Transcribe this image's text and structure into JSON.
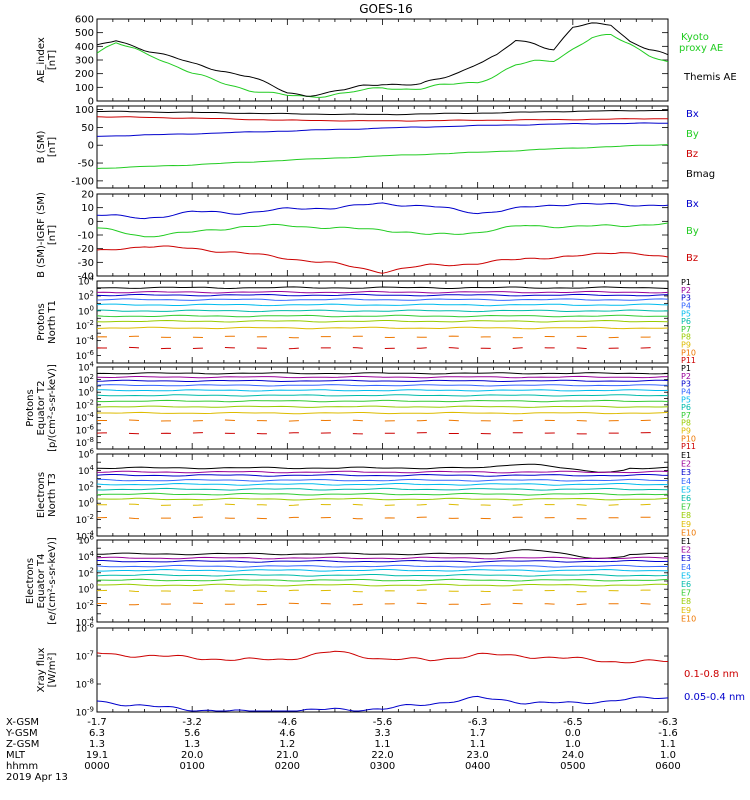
{
  "chart_data": {
    "type": "line",
    "title": "GOES-16",
    "panels": [
      {
        "id": "ae",
        "ylabel": [
          "AE_index",
          "[nT]"
        ],
        "scale": "linear",
        "ylim": [
          0,
          600
        ],
        "yticks": [
          0,
          100,
          200,
          300,
          400,
          500,
          600
        ],
        "series": [
          {
            "name": "Kyoto proxy AE",
            "color": "#22cc22",
            "x": [
              0,
              0.2,
              0.4,
              0.6,
              0.8,
              1.0,
              1.2,
              1.4,
              1.6,
              1.8,
              2.0,
              2.2,
              2.4,
              2.6,
              2.8,
              3.0,
              3.2,
              3.4,
              3.6,
              3.8,
              4.0,
              4.2,
              4.4,
              4.6,
              4.8,
              5.0,
              5.2,
              5.4,
              5.6,
              5.8,
              6.0
            ],
            "y": [
              350,
              420,
              380,
              330,
              260,
              200,
              160,
              120,
              80,
              55,
              40,
              35,
              40,
              55,
              75,
              100,
              90,
              90,
              110,
              130,
              140,
              190,
              260,
              290,
              300,
              380,
              460,
              480,
              420,
              340,
              280
            ]
          },
          {
            "name": "Themis AE",
            "color": "#000000",
            "x": [
              0,
              0.2,
              0.4,
              0.6,
              0.8,
              1.0,
              1.2,
              1.4,
              1.6,
              1.8,
              2.0,
              2.2,
              2.4,
              2.6,
              2.8,
              3.0,
              3.2,
              3.4,
              3.6,
              3.8,
              4.0,
              4.2,
              4.4,
              4.6,
              4.8,
              5.0,
              5.2,
              5.4,
              5.6,
              5.8,
              6.0
            ],
            "y": [
              400,
              440,
              400,
              360,
              320,
              270,
              240,
              210,
              180,
              120,
              60,
              45,
              55,
              80,
              110,
              130,
              120,
              120,
              160,
              210,
              280,
              330,
              440,
              420,
              380,
              540,
              560,
              560,
              440,
              380,
              330
            ]
          }
        ]
      },
      {
        "id": "bsm",
        "ylabel": [
          "B (SM)",
          "[nT]"
        ],
        "scale": "linear",
        "ylim": [
          -120,
          110
        ],
        "yticks": [
          -100,
          -50,
          0,
          50,
          100
        ],
        "series": [
          {
            "name": "Bx",
            "color": "#0000cc",
            "x": [
              0,
              1,
              2,
              3,
              4,
              5,
              6
            ],
            "y": [
              25,
              32,
              40,
              48,
              55,
              60,
              62
            ]
          },
          {
            "name": "By",
            "color": "#22cc22",
            "x": [
              0,
              1,
              2,
              3,
              4,
              5,
              6
            ],
            "y": [
              -65,
              -55,
              -42,
              -30,
              -20,
              -8,
              2
            ]
          },
          {
            "name": "Bz",
            "color": "#cc0000",
            "x": [
              0,
              1,
              2,
              3,
              4,
              5,
              6
            ],
            "y": [
              80,
              76,
              70,
              68,
              70,
              72,
              75
            ]
          },
          {
            "name": "Bmag",
            "color": "#000000",
            "x": [
              0,
              1,
              2,
              3,
              4,
              5,
              6
            ],
            "y": [
              95,
              92,
              88,
              86,
              90,
              95,
              98
            ]
          }
        ]
      },
      {
        "id": "bsmigrf",
        "ylabel": [
          "B (SM)-IGRF (SM)",
          "[nT]"
        ],
        "scale": "linear",
        "ylim": [
          -40,
          20
        ],
        "yticks": [
          -40,
          -30,
          -20,
          -10,
          0,
          10,
          20
        ],
        "series": [
          {
            "name": "Bx",
            "color": "#0000cc",
            "x": [
              0,
              0.5,
              1,
              1.5,
              2,
              2.5,
              3,
              3.5,
              4,
              4.5,
              5,
              5.5,
              6
            ],
            "y": [
              5,
              2,
              7,
              6,
              9,
              10,
              13,
              11,
              6,
              10,
              13,
              12,
              12
            ]
          },
          {
            "name": "By",
            "color": "#22cc22",
            "x": [
              0,
              0.5,
              1,
              1.5,
              2,
              2.5,
              3,
              3.5,
              4,
              4.5,
              5,
              5.5,
              6
            ],
            "y": [
              -5,
              -11,
              -8,
              -4,
              -3,
              -5,
              -6,
              -10,
              -8,
              -3,
              -4,
              -3,
              -2
            ]
          },
          {
            "name": "Bz",
            "color": "#cc0000",
            "x": [
              0,
              0.5,
              1,
              1.5,
              2,
              2.5,
              3,
              3.5,
              4,
              4.5,
              5,
              5.5,
              6
            ],
            "y": [
              -22,
              -18,
              -20,
              -23,
              -27,
              -31,
              -37,
              -32,
              -31,
              -27,
              -26,
              -22,
              -27
            ]
          }
        ]
      },
      {
        "id": "pn",
        "ylabel": [
          "Protons",
          "North T1"
        ],
        "scale": "log",
        "ylim_exp": [
          -7,
          4
        ],
        "ytick_exps": [
          -6,
          -4,
          -2,
          0,
          2,
          4
        ],
        "levels_exp": [
          3.1,
          2.5,
          2.1,
          1.5,
          0.8,
          0.0,
          -0.7,
          -1.4,
          -2.3,
          -3.5,
          -5
        ],
        "series_names": [
          "P1",
          "P2",
          "P3",
          "P4",
          "P5",
          "P6",
          "P7",
          "P8",
          "P9",
          "P10",
          "P11"
        ]
      },
      {
        "id": "pe",
        "ylabel": [
          "Protons",
          "Equator T2",
          "[p/(cm²-s-sr-keV)]"
        ],
        "scale": "log",
        "ylim_exp": [
          -9,
          4
        ],
        "ytick_exps": [
          -8,
          -6,
          -4,
          -2,
          0,
          2,
          4
        ],
        "levels_exp": [
          3.0,
          2.4,
          1.8,
          1.1,
          0.3,
          -0.5,
          -1.4,
          -2.3,
          -3.3,
          -4.5,
          -6.5
        ],
        "series_names": [
          "P1",
          "P2",
          "P3",
          "P4",
          "P5",
          "P6",
          "P7",
          "P8",
          "P9",
          "P10",
          "P11"
        ]
      },
      {
        "id": "en",
        "ylabel": [
          "Electrons",
          "North T3"
        ],
        "scale": "log",
        "ylim_exp": [
          -4,
          6
        ],
        "ytick_exps": [
          -4,
          -2,
          0,
          2,
          4,
          6
        ],
        "levels_exp": [
          4.3,
          3.8,
          3.4,
          2.8,
          2.3,
          1.7,
          1.1,
          0.5,
          -0.2,
          -1.8
        ],
        "series_names": [
          "E1",
          "E2",
          "E3",
          "E4",
          "E5",
          "E6",
          "E7",
          "E8",
          "E9",
          "E10"
        ]
      },
      {
        "id": "ee",
        "ylabel": [
          "Electrons",
          "Equator T4",
          "[e/(cm²-s-sr-keV)]"
        ],
        "scale": "log",
        "ylim_exp": [
          -4,
          6
        ],
        "ytick_exps": [
          -4,
          -2,
          0,
          2,
          4,
          6
        ],
        "levels_exp": [
          4.3,
          3.8,
          3.4,
          2.8,
          2.3,
          1.7,
          1.1,
          0.5,
          -0.2,
          -1.8
        ],
        "series_names": [
          "E1",
          "E2",
          "E3",
          "E4",
          "E5",
          "E6",
          "E7",
          "E8",
          "E9",
          "E10"
        ]
      },
      {
        "id": "xray",
        "ylabel": [
          "Xray flux",
          "[W/m²]"
        ],
        "scale": "log",
        "ylim_exp": [
          -9,
          -6
        ],
        "ytick_exps": [
          -9,
          -8,
          -7,
          -6
        ],
        "series": [
          {
            "name": "0.1-0.8 nm",
            "color": "#cc0000",
            "x": [
              0,
              0.5,
              1,
              1.5,
              2,
              2.5,
              3,
              3.5,
              4,
              4.5,
              5,
              5.5,
              6
            ],
            "y_exp": [
              -6.9,
              -7.0,
              -7.05,
              -7.15,
              -7.1,
              -6.85,
              -7.1,
              -7.15,
              -6.95,
              -7.0,
              -7.1,
              -7.2,
              -7.2
            ]
          },
          {
            "name": "0.05-0.4 nm",
            "color": "#0000cc",
            "x": [
              0,
              0.5,
              1,
              1.5,
              2,
              2.5,
              3,
              3.5,
              4,
              4.5,
              5,
              5.5,
              6
            ],
            "y_exp": [
              -8.6,
              -8.8,
              -8.9,
              -9.0,
              -9.0,
              -8.9,
              -8.9,
              -8.7,
              -8.5,
              -8.65,
              -8.7,
              -8.55,
              -8.5
            ]
          }
        ]
      }
    ],
    "channel_colors": [
      "#000000",
      "#990099",
      "#0000cc",
      "#3366ff",
      "#00bbee",
      "#00bbaa",
      "#33cc33",
      "#99cc00",
      "#ddbb00",
      "#ee7700",
      "#cc0000"
    ],
    "xaxis": {
      "xlim": [
        0,
        6
      ],
      "row_labels": [
        "X-GSM",
        "Y-GSM",
        "Z-GSM",
        "MLT",
        "hhmm",
        "2019 Apr 13"
      ],
      "ticks": [
        {
          "x": 0,
          "xgsm": "-1.7",
          "ygsm": "6.3",
          "zgsm": "1.3",
          "mlt": "19.1",
          "hhmm": "0000"
        },
        {
          "x": 1,
          "xgsm": "-3.2",
          "ygsm": "5.6",
          "zgsm": "1.3",
          "mlt": "20.0",
          "hhmm": "0100"
        },
        {
          "x": 2,
          "xgsm": "-4.6",
          "ygsm": "4.6",
          "zgsm": "1.2",
          "mlt": "21.0",
          "hhmm": "0200"
        },
        {
          "x": 3,
          "xgsm": "-5.6",
          "ygsm": "3.3",
          "zgsm": "1.1",
          "mlt": "22.0",
          "hhmm": "0300"
        },
        {
          "x": 4,
          "xgsm": "-6.3",
          "ygsm": "1.7",
          "zgsm": "1.1",
          "mlt": "23.0",
          "hhmm": "0400"
        },
        {
          "x": 5,
          "xgsm": "-6.5",
          "ygsm": "0.0",
          "zgsm": "1.0",
          "mlt": "24.0",
          "hhmm": "0500"
        },
        {
          "x": 6,
          "xgsm": "-6.3",
          "ygsm": "-1.6",
          "zgsm": "1.1",
          "mlt": "1.0",
          "hhmm": "0600"
        }
      ]
    }
  }
}
